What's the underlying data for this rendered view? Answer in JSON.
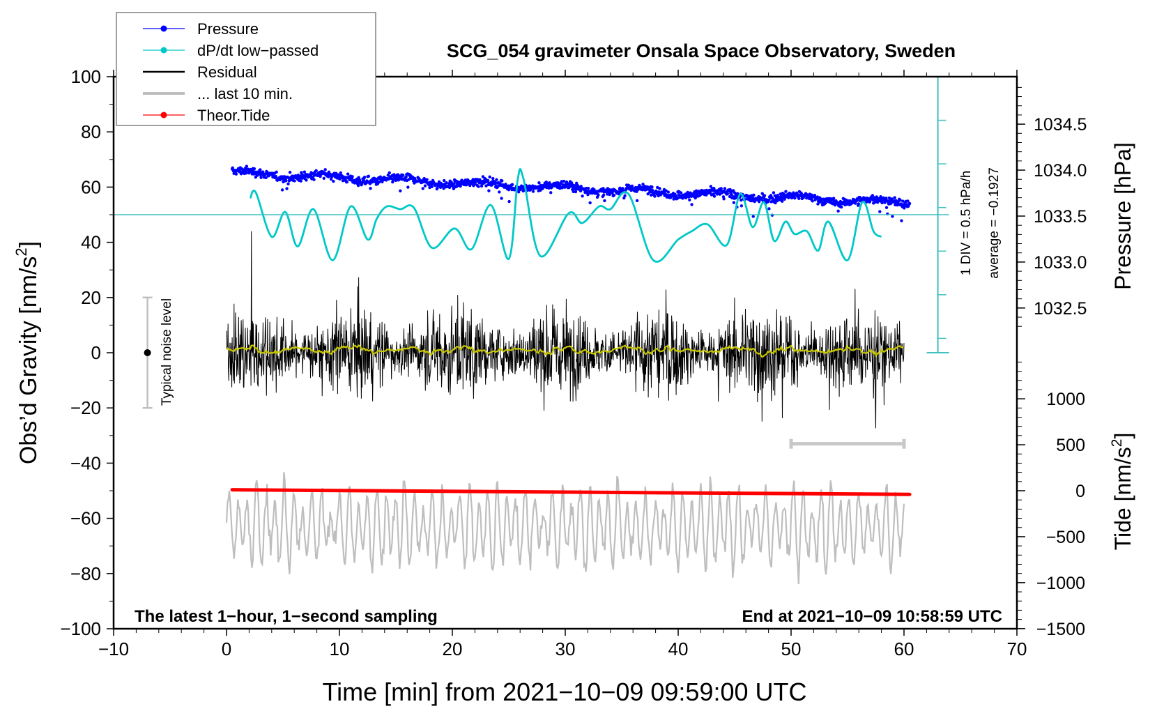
{
  "chart_data": {
    "type": "line",
    "title": "SCG_054 gravimeter Onsala Space Observatory, Sweden",
    "xlabel": "Time [min] from 2021−10−09 09:59:00 UTC",
    "ylabel": "Obs’d Gravity [nm/s²]",
    "ylabel_main": "Obs’d Gravity [nm/s",
    "ylabel_sup": "2",
    "ylabel_end": "]",
    "y2_label": "Pressure [hPa]",
    "y3_label_main": "Tide [nm/s",
    "y3_label_sup": "2",
    "y3_label_end": "]",
    "xlim": [
      -10,
      70
    ],
    "ylim": [
      -100,
      100
    ],
    "x_ticks": [
      -10,
      0,
      10,
      20,
      30,
      40,
      50,
      60,
      70
    ],
    "x_tick_labels": [
      "−10",
      "0",
      "10",
      "20",
      "30",
      "40",
      "50",
      "60",
      "70"
    ],
    "y_ticks": [
      -100,
      -80,
      -60,
      -40,
      -20,
      0,
      20,
      40,
      60,
      80,
      100
    ],
    "y_tick_labels": [
      "−100",
      "−80",
      "−60",
      "−40",
      "−20",
      "0",
      "20",
      "40",
      "60",
      "80",
      "100"
    ],
    "pressure_axis": {
      "ticks": [
        1032.5,
        1033.0,
        1033.5,
        1034.0,
        1034.5
      ],
      "tick_labels": [
        "1032.5",
        "1033.0",
        "1033.5",
        "1034.0",
        "1034.5"
      ],
      "gravity_equiv_of_1034_5": 82.8,
      "gravity_units_per_hPa": 33.3
    },
    "tide_axis": {
      "ticks": [
        -1500,
        -1000,
        -500,
        0,
        500,
        1000
      ],
      "tick_labels": [
        "−1500",
        "−1000",
        "−500",
        "0",
        "500",
        "1000"
      ],
      "gravity_equiv_of_0": -50,
      "gravity_units_per_1000": 33.3
    },
    "legend": {
      "placement": "top-left",
      "entries": [
        {
          "label": "Pressure",
          "color": "#0000ff",
          "marker": "dot"
        },
        {
          "label": "dP/dt low−passed",
          "color": "#00c8c8",
          "marker": "dot"
        },
        {
          "label": "Residual",
          "color": "#000000",
          "marker": "line"
        },
        {
          "label": "... last 10 min.",
          "color": "#bebebe",
          "marker": "thick-line"
        },
        {
          "label": "Theor.Tide",
          "color": "#ff0000",
          "marker": "dot"
        }
      ]
    },
    "annotations": {
      "bottom_left": "The latest 1−hour, 1−second sampling",
      "bottom_right": "End at 2021−10−09 10:58:59 UTC",
      "noise_label": "Typical noise level",
      "dpdt_scale_label": "1 DIV = 0.5 hPa/h",
      "dpdt_average_label": "average = −0.1927"
    },
    "noise_level": {
      "center": 0,
      "half_range": 20,
      "x": -7
    },
    "last10_bar": {
      "x_start": 50,
      "x_end": 60,
      "y": -33
    },
    "dpdt_scale_bar": {
      "x": 63,
      "y_bottom": 0,
      "y_top": 100,
      "baseline_y": 50,
      "div_gravity_units": 15.8
    },
    "series": [
      {
        "name": "Pressure",
        "color": "#0000ff",
        "unit": "hPa",
        "x_range": [
          0.5,
          60.5
        ],
        "start_hPa": 1033.97,
        "end_hPa": 1033.64,
        "scatter_hPa": 0.05
      },
      {
        "name": "dP/dt low-passed",
        "color": "#00c8c8",
        "unit": "gravity-axis units",
        "x": [
          2.1,
          2.6,
          4.0,
          5.2,
          6.3,
          7.7,
          9.4,
          11.0,
          12.5,
          13.3,
          14.2,
          15.4,
          16.6,
          18.2,
          20.2,
          21.7,
          23.4,
          25.0,
          25.8,
          26.3,
          27.8,
          30.3,
          31.5,
          33.0,
          34.0,
          35.6,
          37.8,
          40.0,
          41.2,
          42.6,
          44.3,
          45.5,
          46.6,
          47.6,
          48.5,
          49.5,
          50.3,
          51.4,
          52.4,
          53.3,
          55.0,
          56.3,
          57.3,
          58.0
        ],
        "values": [
          56,
          58,
          42,
          51,
          38.5,
          52,
          33.5,
          53,
          41,
          48.5,
          53,
          52,
          52.5,
          38,
          45,
          37.5,
          53.5,
          34,
          63,
          63,
          35,
          50.5,
          47,
          53,
          52,
          57.5,
          33.5,
          41,
          44,
          46.5,
          39,
          57.5,
          45.5,
          54.5,
          40.5,
          47.5,
          43,
          44,
          37,
          47.5,
          33.5,
          54.5,
          44,
          42
        ]
      },
      {
        "name": "Residual",
        "color": "#000000",
        "unit": "nm/s²",
        "x_range": [
          0,
          60
        ],
        "std": 7.5,
        "peak_min": -36,
        "peak_max": 44
      },
      {
        "name": "Residual smoothed",
        "color": "#c8c800",
        "unit": "nm/s²",
        "x_range": [
          0,
          60
        ],
        "approx_range": [
          -4,
          5
        ]
      },
      {
        "name": "... last 10 min.",
        "color": "#bebebe",
        "unit": "gravity-axis units",
        "x_range": [
          0,
          60
        ],
        "center": -63,
        "amplitude_range": [
          -89,
          -35
        ]
      },
      {
        "name": "Theor.Tide",
        "color": "#ff0000",
        "unit": "nm/s²",
        "x": [
          0.5,
          60.5
        ],
        "values": [
          10,
          -40
        ]
      }
    ]
  }
}
